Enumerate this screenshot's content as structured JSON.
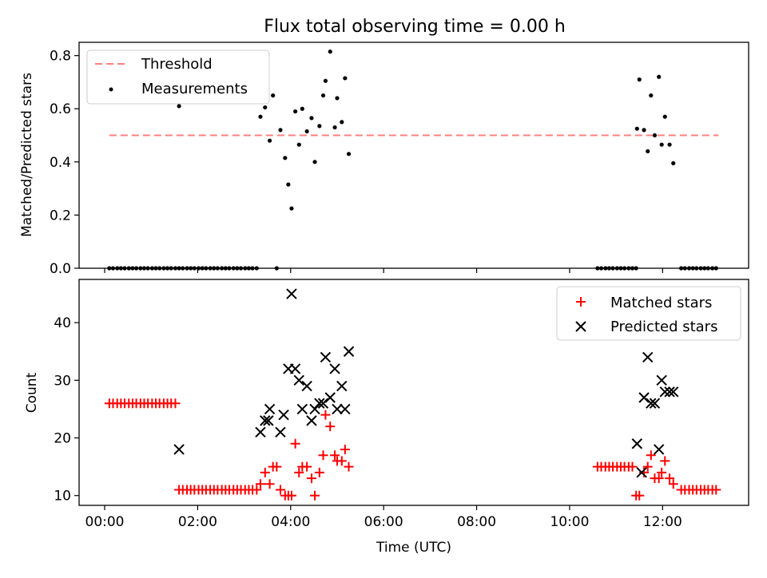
{
  "title": "Flux total observing time = 0.00 h",
  "colors": {
    "threshold": "#ff7f7f",
    "measurements": "#000000",
    "matched": "#ff0000",
    "predicted": "#000000"
  },
  "chart_data": [
    {
      "type": "scatter",
      "ylabel": "Matched/Predicted stars",
      "ylim": [
        0,
        0.85
      ],
      "xlim_hours": [
        -0.55,
        13.85
      ],
      "yticks": [
        {
          "v": 0.0,
          "label": "0.0"
        },
        {
          "v": 0.2,
          "label": "0.2"
        },
        {
          "v": 0.4,
          "label": "0.4"
        },
        {
          "v": 0.6,
          "label": "0.6"
        },
        {
          "v": 0.8,
          "label": "0.8"
        }
      ],
      "xticks_hours": [
        0,
        2,
        4,
        6,
        8,
        10,
        12
      ],
      "legend": {
        "position": "upper-left",
        "threshold_label": "Threshold",
        "measurements_label": "Measurements"
      },
      "threshold": {
        "y": 0.5,
        "x_range_hours": [
          0.1,
          13.2
        ]
      },
      "series": [
        {
          "name": "Measurements",
          "x_hours": [
            0.1,
            0.18,
            0.27,
            0.35,
            0.43,
            0.52,
            0.6,
            0.68,
            0.77,
            0.85,
            0.93,
            1.02,
            1.1,
            1.18,
            1.27,
            1.35,
            1.43,
            1.52,
            1.6,
            1.68,
            1.77,
            1.85,
            1.93,
            2.02,
            2.1,
            2.18,
            2.27,
            2.35,
            2.43,
            2.52,
            2.6,
            2.68,
            2.77,
            2.85,
            2.93,
            3.02,
            3.1,
            3.18,
            3.27,
            3.7,
            10.6,
            10.68,
            10.77,
            10.85,
            10.93,
            11.02,
            11.1,
            11.18,
            11.27,
            11.35,
            11.43,
            12.4,
            12.48,
            12.57,
            12.65,
            12.73,
            12.82,
            12.9,
            12.98,
            13.07,
            13.15,
            1.6,
            3.35,
            3.45,
            3.55,
            3.62,
            3.78,
            3.88,
            3.95,
            4.02,
            4.1,
            4.18,
            4.25,
            4.35,
            4.45,
            4.52,
            4.62,
            4.7,
            4.75,
            4.85,
            4.95,
            5.0,
            5.1,
            5.17,
            5.25,
            11.45,
            11.5,
            11.6,
            11.68,
            11.75,
            11.83,
            11.92,
            11.98,
            12.05,
            12.15,
            12.23
          ],
          "y": [
            0,
            0,
            0,
            0,
            0,
            0,
            0,
            0,
            0,
            0,
            0,
            0,
            0,
            0,
            0,
            0,
            0,
            0,
            0,
            0,
            0,
            0,
            0,
            0,
            0,
            0,
            0,
            0,
            0,
            0,
            0,
            0,
            0,
            0,
            0,
            0,
            0,
            0,
            0,
            0,
            0,
            0,
            0,
            0,
            0,
            0,
            0,
            0,
            0,
            0,
            0,
            0,
            0,
            0,
            0,
            0,
            0,
            0,
            0,
            0,
            0,
            0.61,
            0.57,
            0.605,
            0.48,
            0.65,
            0.52,
            0.415,
            0.315,
            0.225,
            0.59,
            0.465,
            0.6,
            0.515,
            0.565,
            0.4,
            0.535,
            0.65,
            0.705,
            0.815,
            0.53,
            0.64,
            0.55,
            0.715,
            0.43,
            0.525,
            0.71,
            0.52,
            0.44,
            0.65,
            0.5,
            0.72,
            0.465,
            0.57,
            0.465,
            0.395
          ]
        }
      ]
    },
    {
      "type": "scatter",
      "xlabel": "Time (UTC)",
      "ylabel": "Count",
      "ylim": [
        8.3,
        47.5
      ],
      "xlim_hours": [
        -0.55,
        13.85
      ],
      "yticks": [
        {
          "v": 10,
          "label": "10"
        },
        {
          "v": 20,
          "label": "20"
        },
        {
          "v": 30,
          "label": "30"
        },
        {
          "v": 40,
          "label": "40"
        }
      ],
      "xticks": [
        {
          "h": 0,
          "label": "00:00"
        },
        {
          "h": 2,
          "label": "02:00"
        },
        {
          "h": 4,
          "label": "04:00"
        },
        {
          "h": 6,
          "label": "06:00"
        },
        {
          "h": 8,
          "label": "08:00"
        },
        {
          "h": 10,
          "label": "10:00"
        },
        {
          "h": 12,
          "label": "12:00"
        }
      ],
      "legend": {
        "position": "upper-right"
      },
      "series": [
        {
          "name": "Matched stars",
          "x_hours": [
            0.1,
            0.18,
            0.27,
            0.35,
            0.43,
            0.52,
            0.6,
            0.68,
            0.77,
            0.85,
            0.93,
            1.02,
            1.1,
            1.18,
            1.27,
            1.35,
            1.43,
            1.52,
            1.6,
            1.68,
            1.77,
            1.85,
            1.93,
            2.02,
            2.1,
            2.18,
            2.27,
            2.35,
            2.43,
            2.52,
            2.6,
            2.68,
            2.77,
            2.85,
            2.93,
            3.02,
            3.1,
            3.18,
            3.27,
            3.35,
            3.45,
            3.55,
            3.62,
            3.7,
            3.78,
            3.88,
            3.95,
            4.02,
            4.1,
            4.18,
            4.25,
            4.35,
            4.45,
            4.52,
            4.62,
            4.7,
            4.75,
            4.85,
            4.95,
            5.0,
            5.1,
            5.17,
            5.25,
            10.6,
            10.68,
            10.77,
            10.85,
            10.93,
            11.02,
            11.1,
            11.18,
            11.27,
            11.35,
            11.43,
            11.5,
            11.6,
            11.68,
            11.75,
            11.83,
            11.92,
            11.98,
            12.05,
            12.15,
            12.23,
            12.4,
            12.48,
            12.57,
            12.65,
            12.73,
            12.82,
            12.9,
            12.98,
            13.07,
            13.15
          ],
          "y": [
            26,
            26,
            26,
            26,
            26,
            26,
            26,
            26,
            26,
            26,
            26,
            26,
            26,
            26,
            26,
            26,
            26,
            26,
            11,
            11,
            11,
            11,
            11,
            11,
            11,
            11,
            11,
            11,
            11,
            11,
            11,
            11,
            11,
            11,
            11,
            11,
            11,
            11,
            11,
            12,
            14,
            12,
            15,
            15,
            11,
            10,
            10,
            10,
            19,
            14,
            15,
            15,
            13,
            10,
            14,
            17,
            24,
            22,
            17,
            16,
            16,
            18,
            15,
            15,
            15,
            15,
            15,
            15,
            15,
            15,
            15,
            15,
            15,
            10,
            10,
            14,
            15,
            17,
            13,
            13,
            14,
            16,
            13,
            12,
            11,
            11,
            11,
            11,
            11,
            11,
            11,
            11,
            11,
            11
          ]
        },
        {
          "name": "Predicted stars",
          "x_hours": [
            1.6,
            3.35,
            3.45,
            3.52,
            3.55,
            3.78,
            3.85,
            3.95,
            4.02,
            4.1,
            4.18,
            4.25,
            4.35,
            4.45,
            4.52,
            4.62,
            4.7,
            4.75,
            4.85,
            4.95,
            5.0,
            5.1,
            5.17,
            5.25,
            11.45,
            11.55,
            11.6,
            11.68,
            11.75,
            11.83,
            11.92,
            11.98,
            12.05,
            12.15,
            12.23
          ],
          "y": [
            18,
            21,
            23,
            23,
            25,
            21,
            24,
            32,
            45,
            32,
            30,
            25,
            29,
            23,
            25,
            26,
            26,
            34,
            27,
            32,
            25,
            29,
            25,
            35,
            19,
            14,
            27,
            34,
            26,
            26,
            18,
            30,
            28,
            28,
            28
          ]
        }
      ]
    }
  ]
}
